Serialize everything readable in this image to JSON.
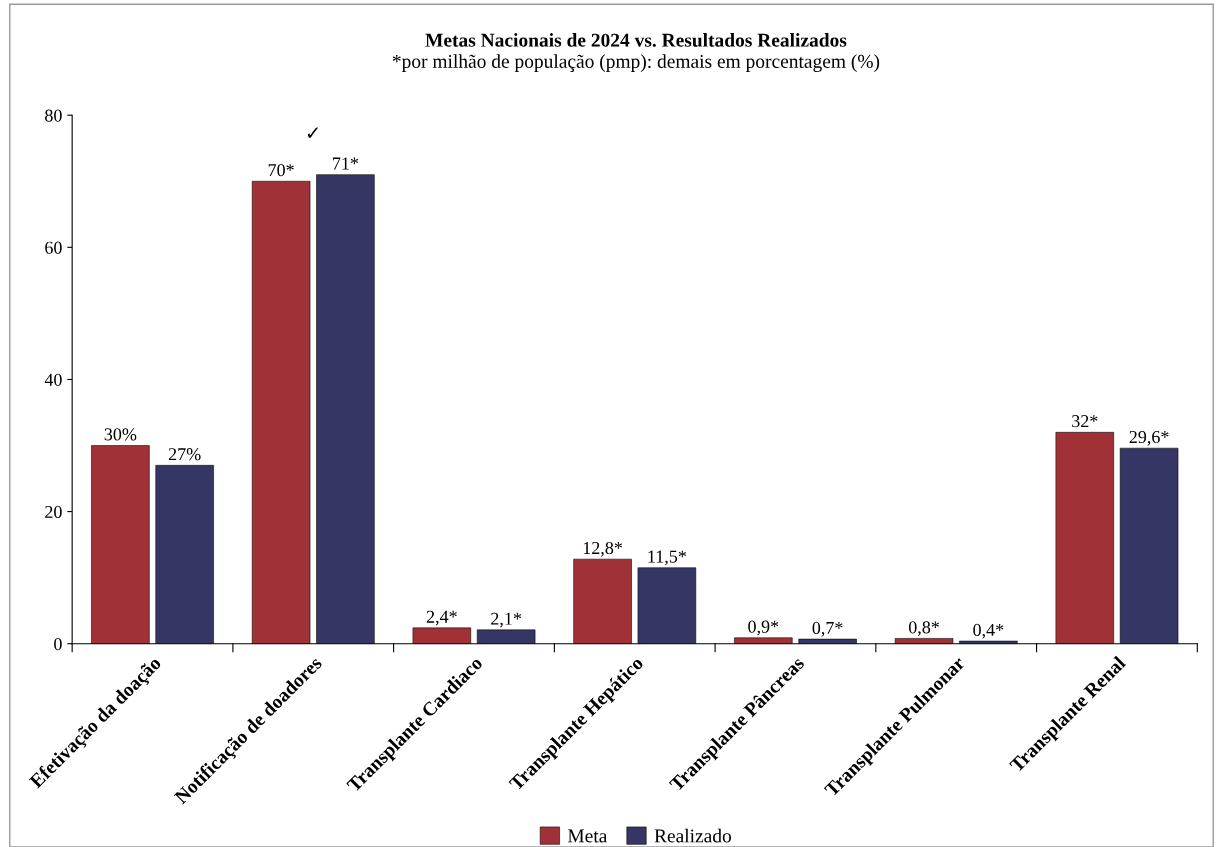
{
  "chart_data": {
    "type": "bar",
    "title": "Metas Nacionais de 2024 vs. Resultados Realizados",
    "subtitle": "*por milhão de população (pmp): demais em porcentagem (%)",
    "categories": [
      "Efetivação da doação",
      "Notificação de doadores",
      "Transplante Cardiaco",
      "Transplante Hepático",
      "Transplante Pâncreas",
      "Transplante Pulmonar",
      "Transplante Renal"
    ],
    "series": [
      {
        "name": "Meta",
        "color": "#a03237",
        "values": [
          30,
          70,
          2.4,
          12.8,
          0.9,
          0.8,
          32
        ],
        "value_labels": [
          "30%",
          "70*",
          "2,4*",
          "12,8*",
          "0,9*",
          "0,8*",
          "32*"
        ]
      },
      {
        "name": "Realizado",
        "color": "#363665",
        "values": [
          27,
          71,
          2.1,
          11.5,
          0.7,
          0.4,
          29.6
        ],
        "value_labels": [
          "27%",
          "71*",
          "2,1*",
          "11,5*",
          "0,7*",
          "0,4*",
          "29,6*"
        ]
      }
    ],
    "annotations": [
      "✓"
    ],
    "ylim": [
      0,
      80
    ],
    "yticks": [
      0,
      20,
      40,
      60,
      80
    ],
    "grid": false,
    "legend": "bottom"
  }
}
